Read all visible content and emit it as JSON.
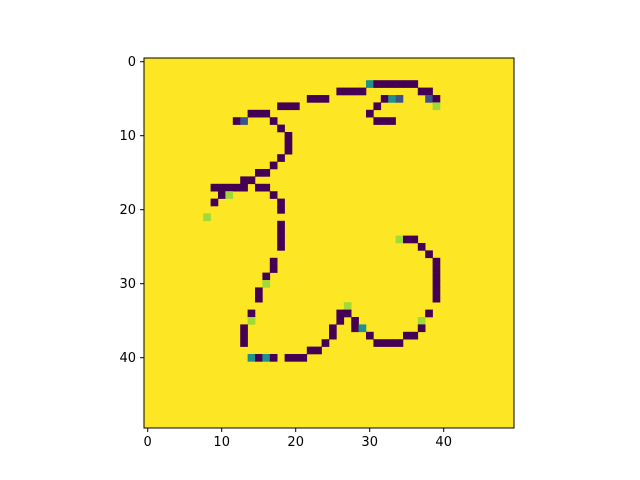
{
  "chart_data": {
    "type": "heatmap",
    "title": "",
    "xlabel": "",
    "ylabel": "",
    "rows": 50,
    "cols": 50,
    "xlim": [
      -0.5,
      49.5
    ],
    "ylim": [
      49.5,
      -0.5
    ],
    "x_ticks": [
      0,
      10,
      20,
      30,
      40
    ],
    "y_ticks": [
      0,
      10,
      20,
      30,
      40
    ],
    "colormap": "viridis",
    "background_value": 1.0,
    "colors": {
      "background": "#fde725",
      "stroke": "#440154",
      "mid_dark": "#3b528b",
      "mid": "#21918c",
      "light": "#a0da39"
    },
    "cells": [
      {
        "x": 30,
        "y": 3,
        "v": 0.5
      },
      {
        "x": 31,
        "y": 3,
        "v": 0.0
      },
      {
        "x": 32,
        "y": 3,
        "v": 0.0
      },
      {
        "x": 33,
        "y": 3,
        "v": 0.0
      },
      {
        "x": 34,
        "y": 3,
        "v": 0.0
      },
      {
        "x": 35,
        "y": 3,
        "v": 0.0
      },
      {
        "x": 36,
        "y": 3,
        "v": 0.0
      },
      {
        "x": 26,
        "y": 4,
        "v": 0.0
      },
      {
        "x": 27,
        "y": 4,
        "v": 0.0
      },
      {
        "x": 28,
        "y": 4,
        "v": 0.0
      },
      {
        "x": 29,
        "y": 4,
        "v": 0.0
      },
      {
        "x": 37,
        "y": 4,
        "v": 0.0
      },
      {
        "x": 38,
        "y": 4,
        "v": 0.0
      },
      {
        "x": 22,
        "y": 5,
        "v": 0.0
      },
      {
        "x": 23,
        "y": 5,
        "v": 0.0
      },
      {
        "x": 24,
        "y": 5,
        "v": 0.0
      },
      {
        "x": 32,
        "y": 5,
        "v": 0.0
      },
      {
        "x": 33,
        "y": 5,
        "v": 0.5
      },
      {
        "x": 34,
        "y": 5,
        "v": 0.2
      },
      {
        "x": 38,
        "y": 5,
        "v": 0.3
      },
      {
        "x": 39,
        "y": 5,
        "v": 0.0
      },
      {
        "x": 18,
        "y": 6,
        "v": 0.0
      },
      {
        "x": 19,
        "y": 6,
        "v": 0.0
      },
      {
        "x": 20,
        "y": 6,
        "v": 0.0
      },
      {
        "x": 31,
        "y": 6,
        "v": 0.0
      },
      {
        "x": 39,
        "y": 6,
        "v": 0.8
      },
      {
        "x": 14,
        "y": 7,
        "v": 0.0
      },
      {
        "x": 15,
        "y": 7,
        "v": 0.0
      },
      {
        "x": 16,
        "y": 7,
        "v": 0.0
      },
      {
        "x": 30,
        "y": 7,
        "v": 0.0
      },
      {
        "x": 12,
        "y": 8,
        "v": 0.0
      },
      {
        "x": 13,
        "y": 8,
        "v": 0.2
      },
      {
        "x": 17,
        "y": 8,
        "v": 0.0
      },
      {
        "x": 31,
        "y": 8,
        "v": 0.0
      },
      {
        "x": 32,
        "y": 8,
        "v": 0.0
      },
      {
        "x": 33,
        "y": 8,
        "v": 0.0
      },
      {
        "x": 18,
        "y": 9,
        "v": 0.0
      },
      {
        "x": 19,
        "y": 10,
        "v": 0.0
      },
      {
        "x": 19,
        "y": 11,
        "v": 0.0
      },
      {
        "x": 19,
        "y": 12,
        "v": 0.0
      },
      {
        "x": 18,
        "y": 13,
        "v": 0.0
      },
      {
        "x": 17,
        "y": 14,
        "v": 0.0
      },
      {
        "x": 15,
        "y": 15,
        "v": 0.0
      },
      {
        "x": 16,
        "y": 15,
        "v": 0.0
      },
      {
        "x": 13,
        "y": 16,
        "v": 0.0
      },
      {
        "x": 14,
        "y": 16,
        "v": 0.0
      },
      {
        "x": 9,
        "y": 17,
        "v": 0.0
      },
      {
        "x": 10,
        "y": 17,
        "v": 0.0
      },
      {
        "x": 11,
        "y": 17,
        "v": 0.0
      },
      {
        "x": 12,
        "y": 17,
        "v": 0.0
      },
      {
        "x": 13,
        "y": 17,
        "v": 0.0
      },
      {
        "x": 15,
        "y": 17,
        "v": 0.0
      },
      {
        "x": 16,
        "y": 17,
        "v": 0.0
      },
      {
        "x": 10,
        "y": 18,
        "v": 0.0
      },
      {
        "x": 11,
        "y": 18,
        "v": 0.8
      },
      {
        "x": 17,
        "y": 18,
        "v": 0.0
      },
      {
        "x": 9,
        "y": 19,
        "v": 0.0
      },
      {
        "x": 18,
        "y": 19,
        "v": 0.0
      },
      {
        "x": 18,
        "y": 20,
        "v": 0.0
      },
      {
        "x": 8,
        "y": 21,
        "v": 0.8
      },
      {
        "x": 18,
        "y": 22,
        "v": 0.0
      },
      {
        "x": 18,
        "y": 23,
        "v": 0.0
      },
      {
        "x": 18,
        "y": 24,
        "v": 0.0
      },
      {
        "x": 34,
        "y": 24,
        "v": 0.8
      },
      {
        "x": 35,
        "y": 24,
        "v": 0.0
      },
      {
        "x": 36,
        "y": 24,
        "v": 0.0
      },
      {
        "x": 18,
        "y": 25,
        "v": 0.0
      },
      {
        "x": 37,
        "y": 25,
        "v": 0.0
      },
      {
        "x": 38,
        "y": 26,
        "v": 0.0
      },
      {
        "x": 17,
        "y": 27,
        "v": 0.0
      },
      {
        "x": 39,
        "y": 27,
        "v": 0.0
      },
      {
        "x": 17,
        "y": 28,
        "v": 0.0
      },
      {
        "x": 39,
        "y": 28,
        "v": 0.0
      },
      {
        "x": 16,
        "y": 29,
        "v": 0.0
      },
      {
        "x": 39,
        "y": 29,
        "v": 0.0
      },
      {
        "x": 16,
        "y": 30,
        "v": 0.8
      },
      {
        "x": 39,
        "y": 30,
        "v": 0.0
      },
      {
        "x": 15,
        "y": 31,
        "v": 0.0
      },
      {
        "x": 39,
        "y": 31,
        "v": 0.0
      },
      {
        "x": 15,
        "y": 32,
        "v": 0.0
      },
      {
        "x": 39,
        "y": 32,
        "v": 0.0
      },
      {
        "x": 27,
        "y": 33,
        "v": 0.8
      },
      {
        "x": 14,
        "y": 34,
        "v": 0.0
      },
      {
        "x": 26,
        "y": 34,
        "v": 0.0
      },
      {
        "x": 27,
        "y": 34,
        "v": 0.0
      },
      {
        "x": 38,
        "y": 34,
        "v": 0.0
      },
      {
        "x": 14,
        "y": 35,
        "v": 0.8
      },
      {
        "x": 26,
        "y": 35,
        "v": 0.0
      },
      {
        "x": 28,
        "y": 35,
        "v": 0.0
      },
      {
        "x": 37,
        "y": 35,
        "v": 0.8
      },
      {
        "x": 13,
        "y": 36,
        "v": 0.0
      },
      {
        "x": 25,
        "y": 36,
        "v": 0.0
      },
      {
        "x": 28,
        "y": 36,
        "v": 0.0
      },
      {
        "x": 29,
        "y": 36,
        "v": 0.5
      },
      {
        "x": 37,
        "y": 36,
        "v": 0.0
      },
      {
        "x": 13,
        "y": 37,
        "v": 0.0
      },
      {
        "x": 25,
        "y": 37,
        "v": 0.0
      },
      {
        "x": 30,
        "y": 37,
        "v": 0.0
      },
      {
        "x": 35,
        "y": 37,
        "v": 0.0
      },
      {
        "x": 36,
        "y": 37,
        "v": 0.0
      },
      {
        "x": 13,
        "y": 38,
        "v": 0.0
      },
      {
        "x": 24,
        "y": 38,
        "v": 0.0
      },
      {
        "x": 31,
        "y": 38,
        "v": 0.0
      },
      {
        "x": 32,
        "y": 38,
        "v": 0.0
      },
      {
        "x": 33,
        "y": 38,
        "v": 0.0
      },
      {
        "x": 34,
        "y": 38,
        "v": 0.0
      },
      {
        "x": 22,
        "y": 39,
        "v": 0.0
      },
      {
        "x": 23,
        "y": 39,
        "v": 0.0
      },
      {
        "x": 14,
        "y": 40,
        "v": 0.5
      },
      {
        "x": 15,
        "y": 40,
        "v": 0.0
      },
      {
        "x": 16,
        "y": 40,
        "v": 0.5
      },
      {
        "x": 17,
        "y": 40,
        "v": 0.0
      },
      {
        "x": 19,
        "y": 40,
        "v": 0.0
      },
      {
        "x": 20,
        "y": 40,
        "v": 0.0
      },
      {
        "x": 21,
        "y": 40,
        "v": 0.0
      }
    ]
  }
}
